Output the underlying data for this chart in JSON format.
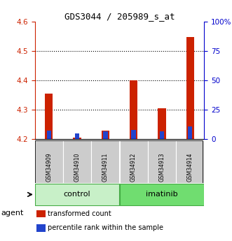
{
  "title": "GDS3044 / 205989_s_at",
  "samples": [
    "GSM34909",
    "GSM34910",
    "GSM34911",
    "GSM34912",
    "GSM34913",
    "GSM34914"
  ],
  "red_values": [
    4.355,
    4.205,
    4.228,
    4.4,
    4.305,
    4.548
  ],
  "blue_values": [
    4.228,
    4.218,
    4.226,
    4.23,
    4.227,
    4.242
  ],
  "ylim_left": [
    4.2,
    4.6
  ],
  "ylim_right": [
    0,
    100
  ],
  "yticks_left": [
    4.2,
    4.3,
    4.4,
    4.5,
    4.6
  ],
  "yticks_right": [
    0,
    25,
    50,
    75,
    100
  ],
  "ytick_labels_right": [
    "0",
    "25",
    "50",
    "75",
    "100%"
  ],
  "groups": [
    {
      "label": "control",
      "indices": [
        0,
        1,
        2
      ],
      "color": "#c8f0c8"
    },
    {
      "label": "imatinib",
      "indices": [
        3,
        4,
        5
      ],
      "color": "#70dd70"
    }
  ],
  "red_color": "#cc2200",
  "blue_color": "#2244cc",
  "base_value": 4.2,
  "sample_box_color": "#cccccc",
  "agent_label": "agent",
  "legend_items": [
    {
      "color": "#cc2200",
      "label": "transformed count"
    },
    {
      "color": "#2244cc",
      "label": "percentile rank within the sample"
    }
  ]
}
